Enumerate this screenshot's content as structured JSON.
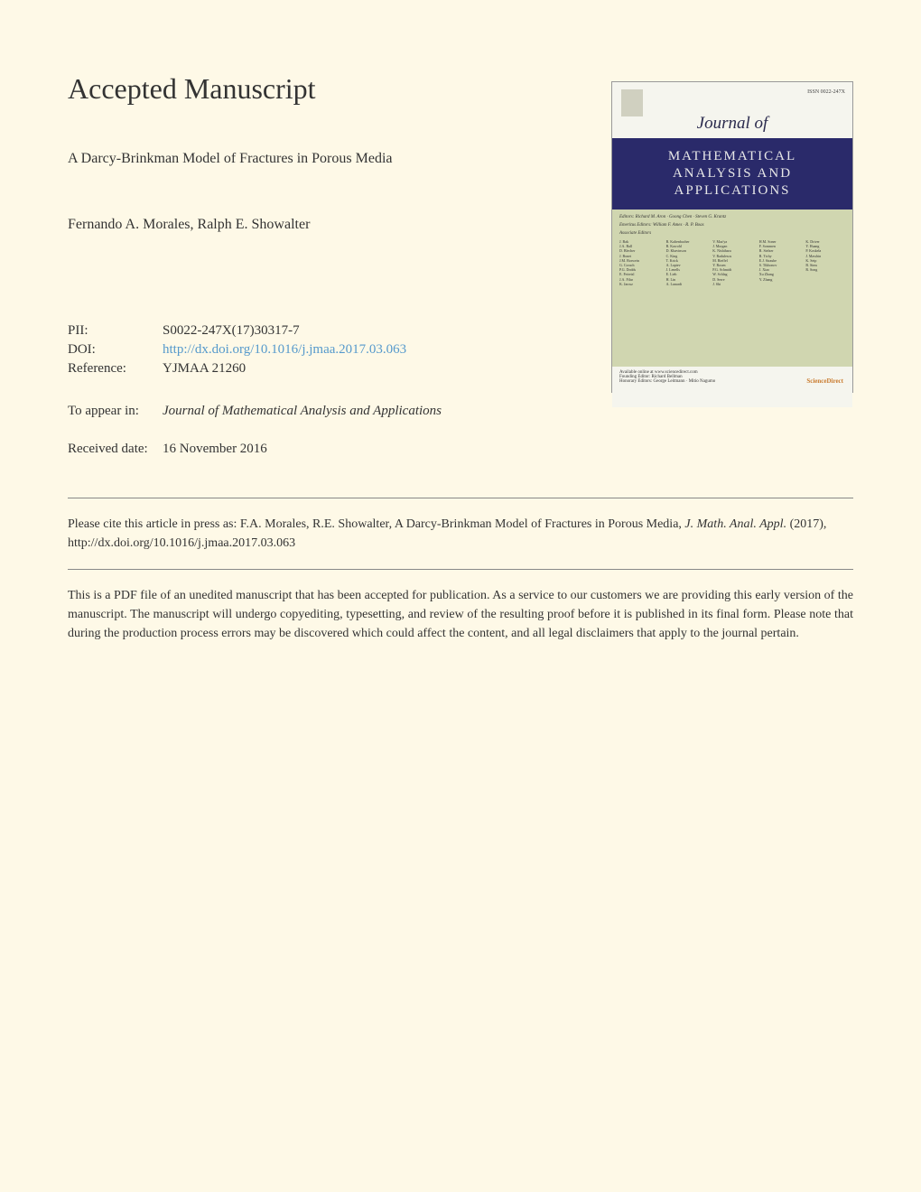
{
  "heading": "Accepted Manuscript",
  "article_title": "A Darcy-Brinkman Model of Fractures in Porous Media",
  "authors": "Fernando A. Morales, Ralph E. Showalter",
  "metadata": {
    "pii_label": "PII:",
    "pii_value": "S0022-247X(17)30317-7",
    "doi_label": "DOI:",
    "doi_value": "http://dx.doi.org/10.1016/j.jmaa.2017.03.063",
    "ref_label": "Reference:",
    "ref_value": "YJMAA 21260"
  },
  "appear": {
    "label": "To appear in:",
    "value": "Journal of Mathematical Analysis and Applications"
  },
  "received": {
    "label": "Received date:",
    "value": "16 November 2016"
  },
  "citation": {
    "prefix": "Please cite this article in press as: F.A. Morales, R.E. Showalter, A Darcy-Brinkman Model of Fractures in Porous Media, ",
    "journal": "J. Math. Anal. Appl.",
    "suffix": " (2017), http://dx.doi.org/10.1016/j.jmaa.2017.03.063"
  },
  "disclaimer": "This is a PDF file of an unedited manuscript that has been accepted for publication. As a service to our customers we are providing this early version of the manuscript. The manuscript will undergo copyediting, typesetting, and review of the resulting proof before it is published in its final form. Please note that during the production process errors may be discovered which could affect the content, and all legal disclaimers that apply to the journal pertain.",
  "cover": {
    "issn": "ISSN 0022-247X",
    "journal_of": "Journal of",
    "title_line1": "MATHEMATICAL",
    "title_line2": "ANALYSIS AND",
    "title_line3": "APPLICATIONS",
    "editors_label": "Editors",
    "scidir": "ScienceDirect",
    "colors": {
      "page_bg": "#fef9e7",
      "cover_bg": "#f5f5ee",
      "cover_blue": "#2a2a6a",
      "cover_green": "#d0d6b0",
      "link_color": "#5599cc",
      "scidir_color": "#c97a2d"
    }
  }
}
